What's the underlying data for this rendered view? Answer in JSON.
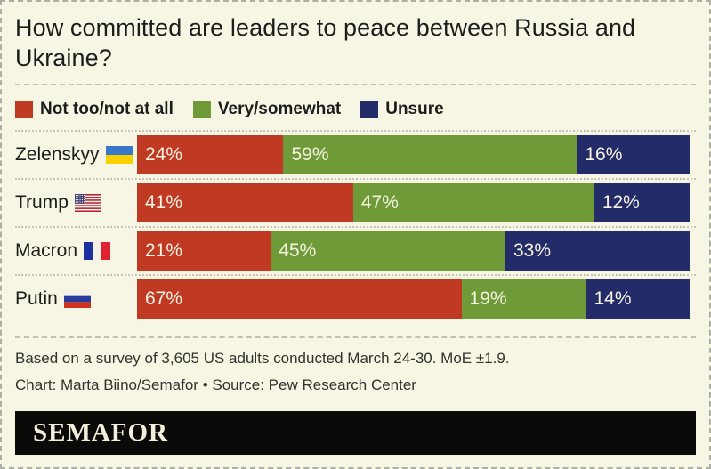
{
  "page": {
    "background_color": "#f7f6e4",
    "title": "How committed are leaders to peace between Russia and Ukraine?"
  },
  "chart_data": {
    "type": "bar",
    "orientation": "horizontal",
    "stacked": true,
    "normalized": true,
    "title": "How committed are leaders to peace between Russia and Ukraine?",
    "categories": [
      "Zelenskyy",
      "Trump",
      "Macron",
      "Putin"
    ],
    "category_flags": [
      "ukraine-flag-icon",
      "usa-flag-icon",
      "france-flag-icon",
      "russia-flag-icon"
    ],
    "series": [
      {
        "name": "Not too/not at all",
        "color": "#c03a23",
        "values": [
          24,
          41,
          21,
          67
        ]
      },
      {
        "name": "Very/somewhat",
        "color": "#6e9a38",
        "values": [
          59,
          47,
          45,
          19
        ]
      },
      {
        "name": "Unsure",
        "color": "#232b68",
        "values": [
          16,
          12,
          33,
          14
        ]
      }
    ],
    "value_suffix": "%",
    "data_labels": "inside-start",
    "legend_position": "top",
    "grid": false
  },
  "footer": {
    "note1": "Based on a survey of 3,605 US adults conducted March 24-30. MoE ±1.9.",
    "note2": "Chart: Marta Biino/Semafor • Source: Pew Research Center",
    "logo": "SEMAFOR"
  }
}
